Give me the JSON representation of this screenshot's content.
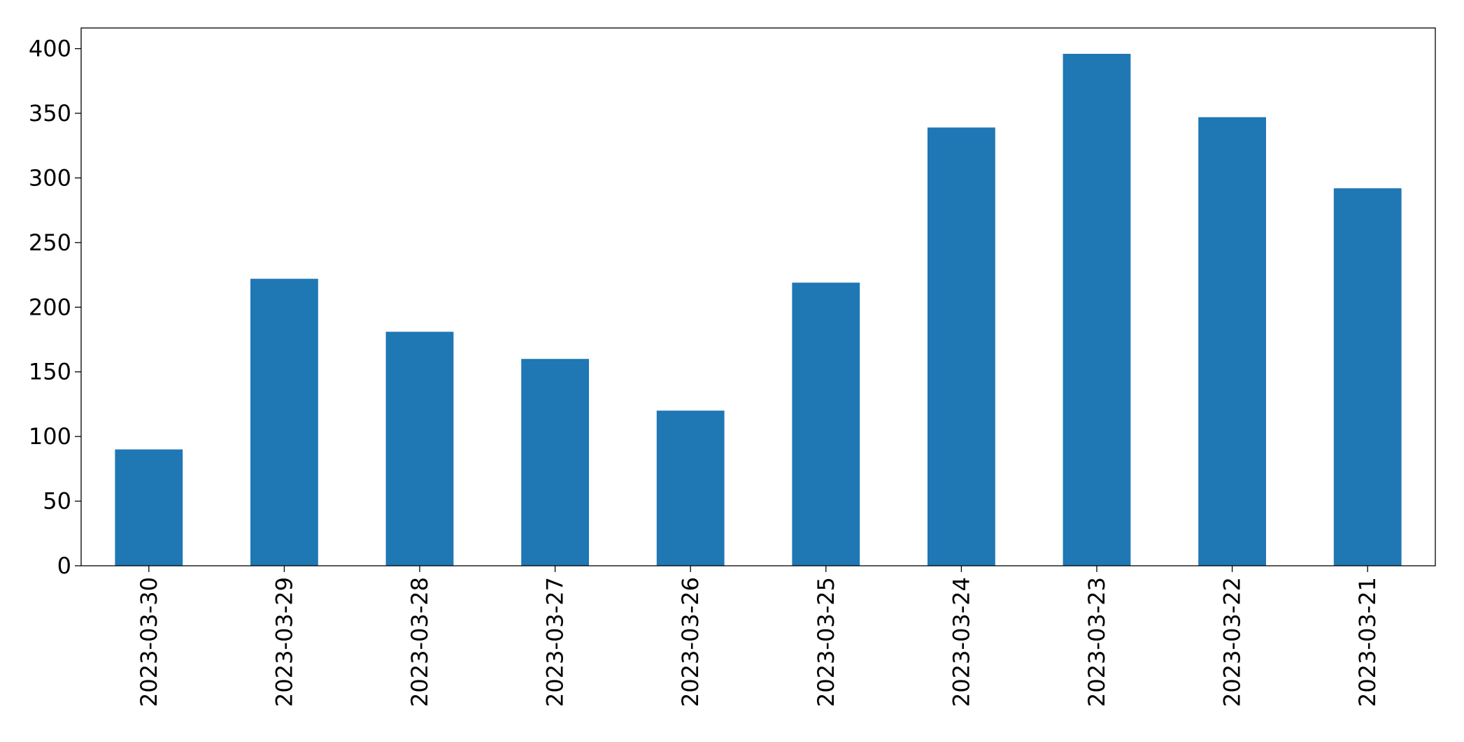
{
  "chart_data": {
    "type": "bar",
    "categories": [
      "2023-03-30",
      "2023-03-29",
      "2023-03-28",
      "2023-03-27",
      "2023-03-26",
      "2023-03-25",
      "2023-03-24",
      "2023-03-23",
      "2023-03-22",
      "2023-03-21"
    ],
    "values": [
      90,
      222,
      181,
      160,
      120,
      219,
      339,
      396,
      347,
      292
    ],
    "color": "#1f77b4",
    "ylim": [
      0,
      416
    ],
    "yticks": [
      0,
      50,
      100,
      150,
      200,
      250,
      300,
      350,
      400
    ],
    "grid": false
  }
}
